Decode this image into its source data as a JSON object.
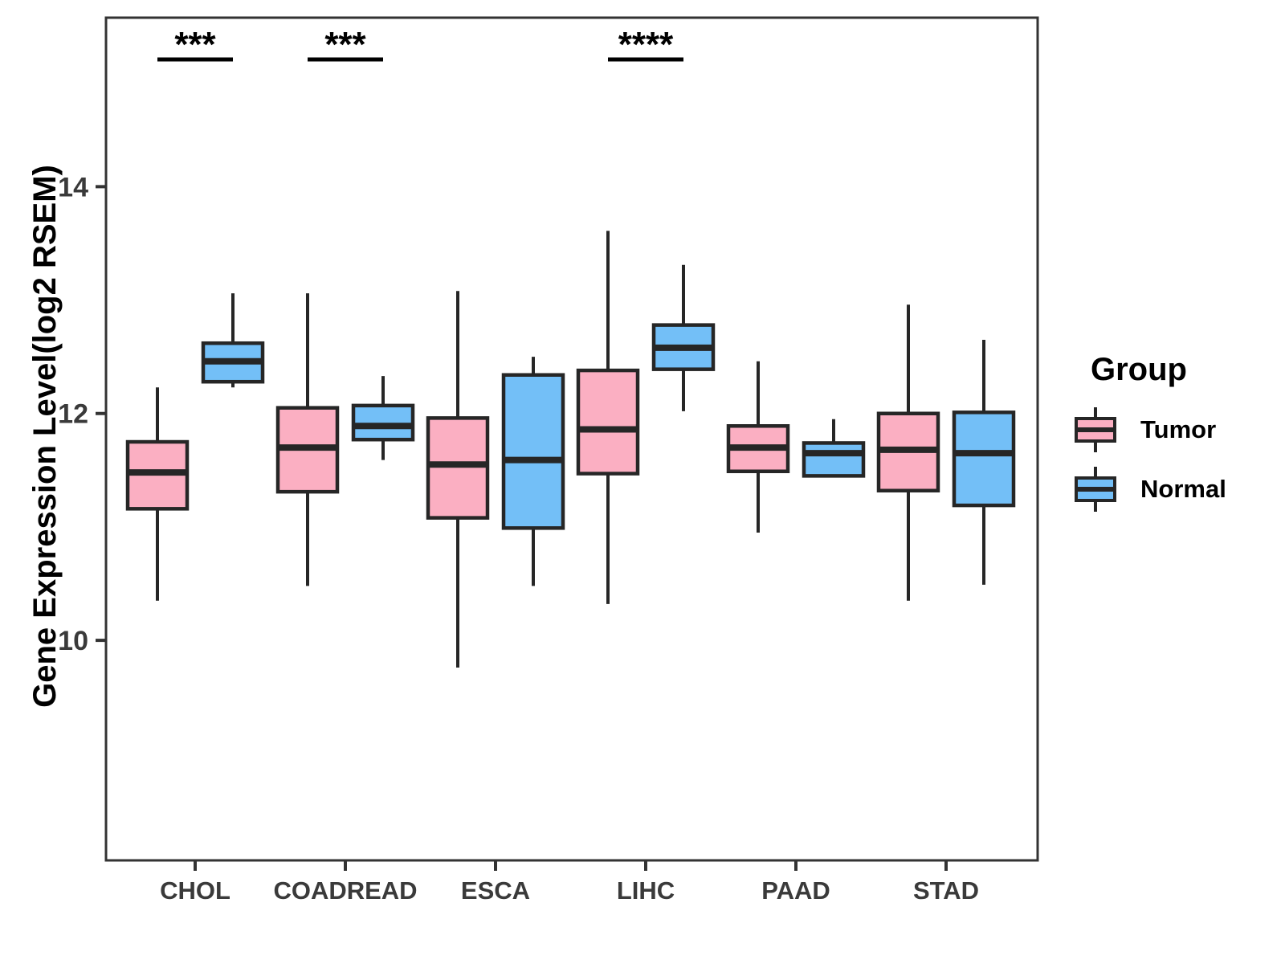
{
  "chart_data": {
    "type": "boxplot",
    "title": "",
    "xlabel": "",
    "ylabel": "Gene Expression Level(log2 RSEM)",
    "ylim": [
      8.06,
      15.49
    ],
    "yticks": [
      10,
      12,
      14
    ],
    "grid": "off",
    "categories": [
      "CHOL",
      "COADREAD",
      "ESCA",
      "LIHC",
      "PAAD",
      "STAD"
    ],
    "groups": [
      {
        "name": "Tumor",
        "color": "#FBAFC2"
      },
      {
        "name": "Normal",
        "color": "#73BFF7"
      }
    ],
    "series": [
      {
        "name": "Tumor",
        "boxes": [
          {
            "category": "CHOL",
            "whisker_low": 10.35,
            "q1": 11.16,
            "median": 11.48,
            "q3": 11.75,
            "whisker_high": 12.23
          },
          {
            "category": "COADREAD",
            "whisker_low": 10.48,
            "q1": 11.31,
            "median": 11.7,
            "q3": 12.05,
            "whisker_high": 13.06
          },
          {
            "category": "ESCA",
            "whisker_low": 9.76,
            "q1": 11.08,
            "median": 11.55,
            "q3": 11.96,
            "whisker_high": 13.08
          },
          {
            "category": "LIHC",
            "whisker_low": 10.32,
            "q1": 11.47,
            "median": 11.86,
            "q3": 12.38,
            "whisker_high": 13.61
          },
          {
            "category": "PAAD",
            "whisker_low": 10.95,
            "q1": 11.49,
            "median": 11.7,
            "q3": 11.89,
            "whisker_high": 12.46
          },
          {
            "category": "STAD",
            "whisker_low": 10.35,
            "q1": 11.32,
            "median": 11.68,
            "q3": 12.0,
            "whisker_high": 12.96
          }
        ]
      },
      {
        "name": "Normal",
        "boxes": [
          {
            "category": "CHOL",
            "whisker_low": 12.23,
            "q1": 12.28,
            "median": 12.46,
            "q3": 12.62,
            "whisker_high": 13.06
          },
          {
            "category": "COADREAD",
            "whisker_low": 11.59,
            "q1": 11.77,
            "median": 11.89,
            "q3": 12.07,
            "whisker_high": 12.33
          },
          {
            "category": "ESCA",
            "whisker_low": 10.48,
            "q1": 10.99,
            "median": 11.59,
            "q3": 12.34,
            "whisker_high": 12.5
          },
          {
            "category": "LIHC",
            "whisker_low": 12.02,
            "q1": 12.39,
            "median": 12.58,
            "q3": 12.78,
            "whisker_high": 13.31
          },
          {
            "category": "PAAD",
            "whisker_low": 11.45,
            "q1": 11.45,
            "median": 11.65,
            "q3": 11.74,
            "whisker_high": 11.95
          },
          {
            "category": "STAD",
            "whisker_low": 10.49,
            "q1": 11.19,
            "median": 11.65,
            "q3": 12.01,
            "whisker_high": 12.65
          }
        ]
      }
    ],
    "significance": [
      {
        "category": "CHOL",
        "label": "***"
      },
      {
        "category": "COADREAD",
        "label": "***"
      },
      {
        "category": "LIHC",
        "label": "****"
      }
    ],
    "legend": {
      "title": "Group",
      "position": "right",
      "entries": [
        "Tumor",
        "Normal"
      ]
    },
    "colors": {
      "box_border": "#262626",
      "panel_border": "#333333",
      "axis_text": "#3a3a3a",
      "significance": "#000000"
    }
  }
}
